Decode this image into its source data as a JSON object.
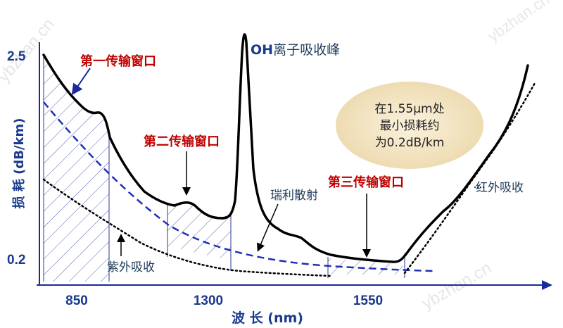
{
  "chart_data": {
    "type": "line",
    "xlabel": "波 长 (nm)",
    "ylabel": "损 耗 (dB/km)",
    "xticks": [
      "850",
      "1300",
      "1550"
    ],
    "yticks": [
      "2.5",
      "0.2"
    ],
    "annotations": {
      "window1": "第一传输窗口",
      "window2": "第二传输窗口",
      "window3": "第三传输窗口",
      "oh_peak_prefix": "OH",
      "oh_peak_rest": "离子吸收峰",
      "rayleigh": "瑞利散射",
      "uv": "紫外吸收",
      "ir": "红外吸收",
      "min_loss_line1": "在1.55μm处",
      "min_loss_line2": "最小损耗约",
      "min_loss_line3": "为0.2dB/km"
    },
    "watermarks": [
      "ybzhan.cn",
      "ybzhan.cn",
      "ybzhan.cn"
    ],
    "colors": {
      "axis": "#1a3a8c",
      "label_red": "#c00000",
      "label_gray": "#1f3b5a",
      "rayleigh_curve": "#1f2fb5",
      "main_curve": "#000000",
      "callout_bg": "#f6e8c9"
    }
  }
}
